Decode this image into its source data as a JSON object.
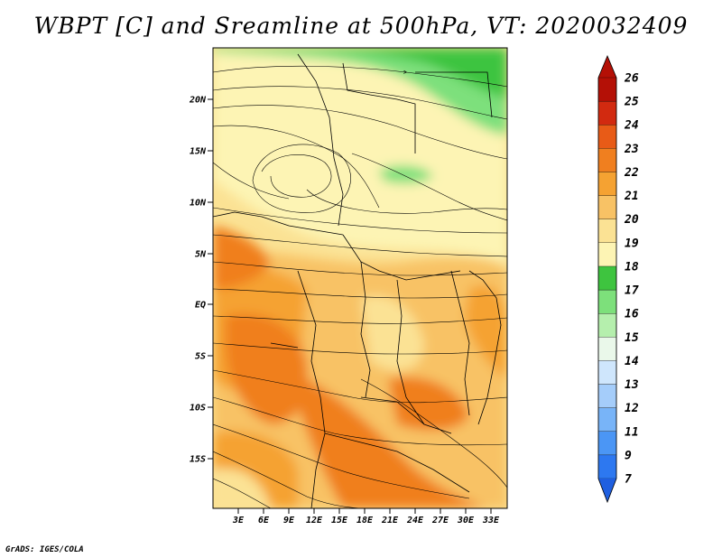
{
  "title": "WBPT [C] and Sreamline at 500hPa, VT: 2020032409",
  "credit": "GrADS: IGES/COLA",
  "map": {
    "lon_range": [
      0,
      35
    ],
    "lat_range": [
      -19.5,
      25
    ],
    "x_ticks": [
      "3E",
      "6E",
      "9E",
      "12E",
      "15E",
      "18E",
      "21E",
      "24E",
      "27E",
      "30E",
      "33E"
    ],
    "y_ticks": [
      "20N",
      "15N",
      "10N",
      "5N",
      "EQ",
      "5S",
      "10S",
      "15S"
    ]
  },
  "colorbar": {
    "labels": [
      "7",
      "9",
      "11",
      "12",
      "13",
      "14",
      "15",
      "16",
      "17",
      "18",
      "19",
      "20",
      "21",
      "22",
      "23",
      "24",
      "25",
      "26"
    ],
    "colors": [
      "#1f5fe0",
      "#2d78f0",
      "#4b96f5",
      "#78b4f8",
      "#a5cdfa",
      "#cfe6fc",
      "#eaf8ea",
      "#b5efad",
      "#7de07b",
      "#3ec43f",
      "#fdf4b4",
      "#fbe294",
      "#f8c265",
      "#f5a232",
      "#f07f1f",
      "#e85b17",
      "#d22a10",
      "#b41006"
    ]
  }
}
